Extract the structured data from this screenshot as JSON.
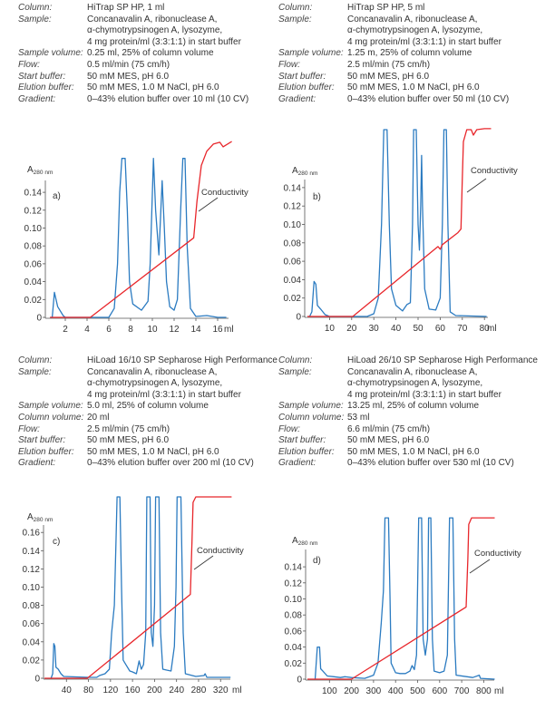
{
  "panels": [
    {
      "rows": [
        [
          "Column:",
          "HiTrap SP HP, 1 ml"
        ],
        [
          "Sample:",
          "Concanavalin A, ribonuclease A,\nα-chymotrypsinogen A, lysozyme,\n4 mg protein/ml (3:3:1:1) in start buffer"
        ],
        [
          "Sample volume:",
          "0.25 ml, 25% of column volume"
        ],
        [
          "Flow:",
          "0.5 ml/min (75 cm/h)"
        ],
        [
          "Start buffer:",
          "50 mM MES, pH 6.0"
        ],
        [
          "Elution buffer:",
          "50 mM MES, 1.0 M NaCl, pH 6.0"
        ],
        [
          "Gradient:",
          "0–43% elution buffer over 10 ml (10 CV)"
        ]
      ]
    },
    {
      "rows": [
        [
          "Column:",
          "HiTrap SP HP, 5 ml"
        ],
        [
          "Sample:",
          "Concanavalin A, ribonuclease A,\nα-chymotrypsinogen A, lysozyme,\n4 mg protein/ml (3:3:1:1) in start buffer"
        ],
        [
          "Sample volume:",
          "1.25 m, 25% of column volume"
        ],
        [
          "Flow:",
          "2.5 ml/min (75 cm/h)"
        ],
        [
          "Start buffer:",
          "50 mM MES, pH 6.0"
        ],
        [
          "Elution buffer:",
          "50 mM MES, 1.0 M NaCl, pH 6.0"
        ],
        [
          "Gradient:",
          "0–43% elution buffer over 50 ml (10 CV)"
        ]
      ]
    },
    {
      "rows": [
        [
          "Column:",
          "HiLoad 16/10 SP Sepharose High Performance"
        ],
        [
          "Sample:",
          "Concanavalin A, ribonuclease A,\nα-chymotrypsinogen A, lysozyme,\n4 mg protein/ml (3:3:1:1) in start buffer"
        ],
        [
          "Sample volume:",
          "5.0 ml, 25% of column volume"
        ],
        [
          "Column volume:",
          "20 ml"
        ],
        [
          "Flow:",
          "2.5 ml/min (75 cm/h)"
        ],
        [
          "Start buffer:",
          "50 mM MES, pH 6.0"
        ],
        [
          "Elution buffer:",
          "50 mM MES, 1.0 M NaCl, pH 6.0"
        ],
        [
          "Gradient:",
          "0–43% elution buffer over 200 ml (10 CV)"
        ]
      ]
    },
    {
      "rows": [
        [
          "Column:",
          "HiLoad 26/10 SP Sepharose High Performance"
        ],
        [
          "Sample:",
          "Concanavalin A, ribonuclease A,\nα-chymotrypsinogen A, lysozyme,\n4 mg protein/ml (3:3:1:1) in start buffer"
        ],
        [
          "Sample volume:",
          "13.25 ml, 25% of column volume"
        ],
        [
          "Column volume:",
          "53 ml"
        ],
        [
          "Flow:",
          "6.6 ml/min (75 cm/h)"
        ],
        [
          "Start buffer:",
          "50 mM MES, pH 6.0"
        ],
        [
          "Elution buffer:",
          "50 mM MES, 1.0 M NaCl, pH 6.0"
        ],
        [
          "Gradient:",
          "0–43% elution buffer over 530 ml (10 CV)"
        ]
      ]
    }
  ],
  "colors": {
    "absorbance": "#2b7bc1",
    "conductivity": "#e8262b"
  },
  "chart_data": [
    {
      "type": "line",
      "panel_label": "a)",
      "ylabel": "A",
      "ylabel_sub": "280 nm",
      "xunit": "ml",
      "annotation": "Conductivity",
      "xticks": [
        2,
        4,
        6,
        8,
        10,
        12,
        14,
        16
      ],
      "yticks": [
        "0",
        "0.02",
        "0.04",
        "0.06",
        "0.08",
        "0.10",
        "0.12",
        "0.14"
      ],
      "series": [
        {
          "key": "absorbance",
          "points": [
            [
              0.6,
              0
            ],
            [
              0.8,
              0
            ],
            [
              1,
              0.028
            ],
            [
              1.3,
              0.012
            ],
            [
              1.8,
              0.002
            ],
            [
              2,
              0
            ],
            [
              6,
              0
            ],
            [
              6.5,
              0.01
            ],
            [
              6.8,
              0.06
            ],
            [
              7.0,
              0.14
            ],
            [
              7.2,
              0.178
            ],
            [
              7.5,
              0.178
            ],
            [
              7.7,
              0.12
            ],
            [
              7.9,
              0.04
            ],
            [
              8.2,
              0.015
            ],
            [
              9,
              0.008
            ],
            [
              9.6,
              0.018
            ],
            [
              9.8,
              0.06
            ],
            [
              10.1,
              0.178
            ],
            [
              10.3,
              0.12
            ],
            [
              10.6,
              0.07
            ],
            [
              10.9,
              0.153
            ],
            [
              11.1,
              0.1
            ],
            [
              11.3,
              0.04
            ],
            [
              11.6,
              0.012
            ],
            [
              12,
              0.008
            ],
            [
              12.3,
              0.02
            ],
            [
              12.6,
              0.12
            ],
            [
              12.8,
              0.178
            ],
            [
              13,
              0.178
            ],
            [
              13.2,
              0.08
            ],
            [
              13.5,
              0.01
            ],
            [
              14,
              0.001
            ],
            [
              15,
              0.002
            ],
            [
              16,
              0
            ],
            [
              16.8,
              0
            ]
          ]
        },
        {
          "key": "conductivity",
          "label": "Conductivity",
          "points": [
            [
              0.6,
              0
            ],
            [
              4.3,
              0
            ],
            [
              13.8,
              0.089
            ],
            [
              14.1,
              0.13
            ],
            [
              14.5,
              0.17
            ],
            [
              15,
              0.186
            ],
            [
              15.6,
              0.194
            ],
            [
              16.2,
              0.196
            ],
            [
              16.5,
              0.191
            ],
            [
              17.3,
              0.197
            ]
          ]
        }
      ]
    },
    {
      "type": "line",
      "panel_label": "b)",
      "ylabel": "A",
      "ylabel_sub": "280 nm",
      "xunit": "ml",
      "annotation": "Conductivity",
      "xticks": [
        10,
        20,
        30,
        40,
        50,
        60,
        70,
        80
      ],
      "yticks": [
        "0",
        "0.02",
        "0.04",
        "0.06",
        "0.08",
        "0.10",
        "0.12",
        "0.14"
      ],
      "series": [
        {
          "key": "absorbance",
          "points": [
            [
              1,
              0
            ],
            [
              2,
              0.005
            ],
            [
              3,
              0.038
            ],
            [
              3.8,
              0.035
            ],
            [
              4.5,
              0.012
            ],
            [
              6,
              0.008
            ],
            [
              8,
              0.002
            ],
            [
              10,
              0
            ],
            [
              27,
              0
            ],
            [
              30,
              0.003
            ],
            [
              32,
              0.02
            ],
            [
              33.5,
              0.1
            ],
            [
              34.5,
              0.203
            ],
            [
              36,
              0.203
            ],
            [
              37,
              0.1
            ],
            [
              38,
              0.03
            ],
            [
              40,
              0.012
            ],
            [
              42,
              0.008
            ],
            [
              43,
              0.006
            ],
            [
              45,
              0.013
            ],
            [
              46.5,
              0.015
            ],
            [
              47.5,
              0.1
            ],
            [
              48,
              0.203
            ],
            [
              49.2,
              0.203
            ],
            [
              50,
              0.1
            ],
            [
              50.6,
              0.072
            ],
            [
              51.2,
              0.12
            ],
            [
              51.6,
              0.175
            ],
            [
              52,
              0.12
            ],
            [
              53,
              0.03
            ],
            [
              55,
              0.008
            ],
            [
              58,
              0.007
            ],
            [
              60,
              0.02
            ],
            [
              61,
              0.1
            ],
            [
              61.7,
              0.203
            ],
            [
              62.8,
              0.203
            ],
            [
              63.5,
              0.1
            ],
            [
              64.5,
              0.005
            ],
            [
              67,
              0.001
            ],
            [
              81,
              0
            ]
          ]
        },
        {
          "key": "conductivity",
          "label": "Conductivity",
          "points": [
            [
              0,
              0
            ],
            [
              20.5,
              0
            ],
            [
              59,
              0.076
            ],
            [
              60,
              0.073
            ],
            [
              61,
              0.078
            ],
            [
              68,
              0.091
            ],
            [
              69.4,
              0.095
            ],
            [
              70,
              0.15
            ],
            [
              70.5,
              0.19
            ],
            [
              72,
              0.203
            ],
            [
              74,
              0.203
            ],
            [
              75,
              0.197
            ],
            [
              76.5,
              0.203
            ],
            [
              80,
              0.204
            ],
            [
              83,
              0.204
            ]
          ]
        }
      ]
    },
    {
      "type": "line",
      "panel_label": "c)",
      "ylabel": "A",
      "ylabel_sub": "280 nm",
      "xunit": "ml",
      "annotation": "Conductivity",
      "xticks": [
        40,
        80,
        120,
        160,
        200,
        240,
        280,
        320
      ],
      "yticks": [
        "0",
        "0.02",
        "0.04",
        "0.06",
        "0.08",
        "0.10",
        "0.12",
        "0.14",
        "0.16"
      ],
      "series": [
        {
          "key": "absorbance",
          "points": [
            [
              12,
              0
            ],
            [
              15,
              0.005
            ],
            [
              17,
              0.038
            ],
            [
              19,
              0.035
            ],
            [
              21,
              0.012
            ],
            [
              25,
              0.01
            ],
            [
              30,
              0.005
            ],
            [
              35,
              0.002
            ],
            [
              80,
              0.001
            ],
            [
              95,
              0.001
            ],
            [
              100,
              0.003
            ],
            [
              110,
              0.005
            ],
            [
              118,
              0.01
            ],
            [
              122,
              0.05
            ],
            [
              127,
              0.08
            ],
            [
              130,
              0.15
            ],
            [
              132,
              0.199
            ],
            [
              137,
              0.199
            ],
            [
              140,
              0.1
            ],
            [
              143,
              0.02
            ],
            [
              148,
              0.015
            ],
            [
              155,
              0.008
            ],
            [
              160,
              0.007
            ],
            [
              167,
              0.005
            ],
            [
              172,
              0.019
            ],
            [
              176,
              0.01
            ],
            [
              180,
              0.015
            ],
            [
              184,
              0.05
            ],
            [
              186,
              0.199
            ],
            [
              192,
              0.199
            ],
            [
              194,
              0.05
            ],
            [
              197,
              0.035
            ],
            [
              200,
              0.08
            ],
            [
              202,
              0.199
            ],
            [
              208,
              0.199
            ],
            [
              211,
              0.05
            ],
            [
              215,
              0.01
            ],
            [
              222,
              0.009
            ],
            [
              230,
              0.008
            ],
            [
              236,
              0.035
            ],
            [
              239,
              0.1
            ],
            [
              241,
              0.199
            ],
            [
              248,
              0.199
            ],
            [
              252,
              0.05
            ],
            [
              256,
              0.005
            ],
            [
              275,
              0.002
            ],
            [
              290,
              0.003
            ],
            [
              292,
              0.005
            ],
            [
              295,
              0.001
            ],
            [
              338,
              0.001
            ]
          ]
        },
        {
          "key": "conductivity",
          "label": "Conductivity",
          "points": [
            [
              0,
              0
            ],
            [
              78,
              0
            ],
            [
              265,
              0.092
            ],
            [
              268,
              0.15
            ],
            [
              270,
              0.193
            ],
            [
              275,
              0.199
            ],
            [
              340,
              0.199
            ]
          ]
        }
      ]
    },
    {
      "type": "line",
      "panel_label": "d)",
      "ylabel": "A",
      "ylabel_sub": "280 nm",
      "xunit": "ml",
      "annotation": "Conductivity",
      "xticks": [
        100,
        200,
        300,
        400,
        500,
        600,
        700,
        800
      ],
      "yticks": [
        "0",
        "0.02",
        "0.04",
        "0.06",
        "0.08",
        "0.10",
        "0.12",
        "0.14"
      ],
      "series": [
        {
          "key": "absorbance",
          "points": [
            [
              35,
              0
            ],
            [
              45,
              0.04
            ],
            [
              55,
              0.04
            ],
            [
              60,
              0.013
            ],
            [
              70,
              0.01
            ],
            [
              90,
              0.004
            ],
            [
              120,
              0.003
            ],
            [
              150,
              0.002
            ],
            [
              170,
              0.003
            ],
            [
              200,
              0.002
            ],
            [
              260,
              0.001
            ],
            [
              300,
              0.005
            ],
            [
              320,
              0.02
            ],
            [
              335,
              0.07
            ],
            [
              345,
              0.11
            ],
            [
              352,
              0.201
            ],
            [
              368,
              0.201
            ],
            [
              375,
              0.1
            ],
            [
              380,
              0.02
            ],
            [
              400,
              0.008
            ],
            [
              420,
              0.007
            ],
            [
              445,
              0.007
            ],
            [
              465,
              0.01
            ],
            [
              475,
              0.017
            ],
            [
              485,
              0.012
            ],
            [
              495,
              0.03
            ],
            [
              505,
              0.201
            ],
            [
              518,
              0.201
            ],
            [
              525,
              0.05
            ],
            [
              535,
              0.03
            ],
            [
              545,
              0.05
            ],
            [
              550,
              0.201
            ],
            [
              560,
              0.201
            ],
            [
              567,
              0.05
            ],
            [
              575,
              0.01
            ],
            [
              600,
              0.008
            ],
            [
              620,
              0.01
            ],
            [
              635,
              0.03
            ],
            [
              645,
              0.201
            ],
            [
              660,
              0.201
            ],
            [
              668,
              0.05
            ],
            [
              675,
              0.005
            ],
            [
              750,
              0.002
            ],
            [
              780,
              0.005
            ],
            [
              785,
              0.001
            ],
            [
              850,
              0
            ]
          ]
        },
        {
          "key": "conductivity",
          "label": "Conductivity",
          "points": [
            [
              0,
              0
            ],
            [
              200,
              0
            ],
            [
              720,
              0.09
            ],
            [
              728,
              0.15
            ],
            [
              732,
              0.193
            ],
            [
              745,
              0.201
            ],
            [
              850,
              0.201
            ]
          ]
        }
      ]
    }
  ]
}
